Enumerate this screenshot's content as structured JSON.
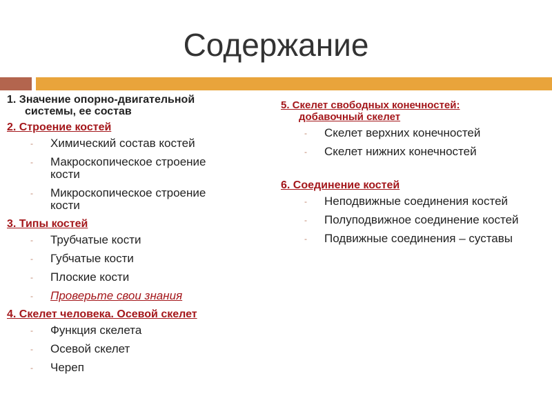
{
  "title": "Содержание",
  "colors": {
    "brown": "#b3654e",
    "orange": "#e9a43b",
    "accent": "#a4171b"
  },
  "left": {
    "s1": "1. Значение опорно-двигательной системы, ее состав",
    "s2": "2. Строение костей",
    "s2_items": [
      "Химический состав костей",
      "Макроскопическое строение кости",
      "Микроскопическое строение кости"
    ],
    "s3": "3. Типы костей",
    "s3_items": [
      "Трубчатые кости",
      "Губчатые кости",
      "Плоские кости"
    ],
    "s3_link": "Проверьте свои знания",
    "s4": "4. Скелет человека. Осевой скелет",
    "s4_items": [
      "Функция скелета",
      "Осевой скелет",
      "Череп"
    ]
  },
  "right": {
    "s5": "5. Скелет свободных конечностей: добавочный скелет",
    "s5_items": [
      "Скелет верхних конечностей",
      "Скелет нижних конечностей"
    ],
    "s6": "6. Соединение костей",
    "s6_items": [
      "Неподвижные соединения костей",
      "Полуподвижное соединение костей",
      "Подвижные соединения – суставы"
    ]
  }
}
